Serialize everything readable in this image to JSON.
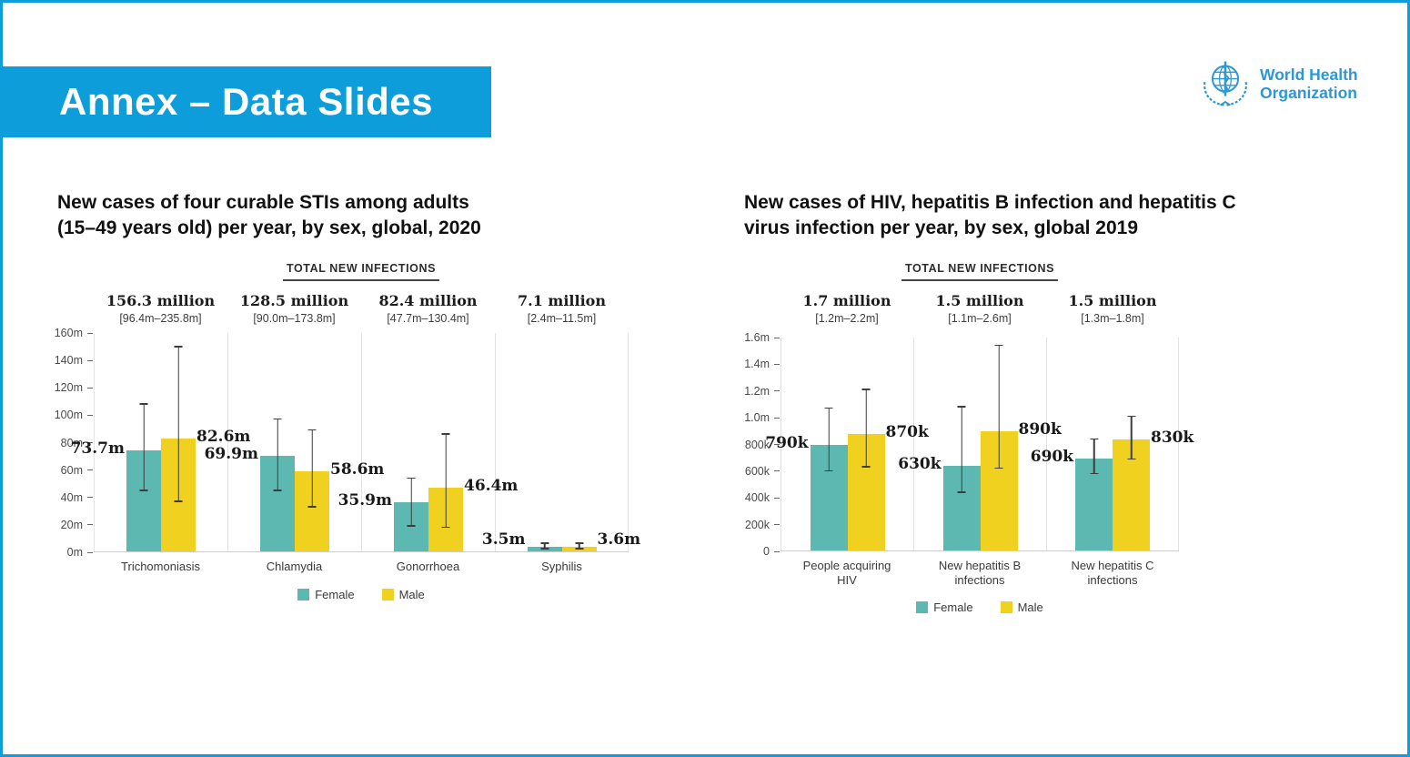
{
  "slide": {
    "banner_title": "Annex – Data Slides"
  },
  "logo": {
    "line1": "World Health",
    "line2": "Organization"
  },
  "colors": {
    "accent_blue": "#0d9dda",
    "logo_blue": "#2e97d3",
    "female_teal": "#5db8b2",
    "male_yellow": "#f0d11f",
    "error_bar": "#3d3d3d"
  },
  "chart_data": [
    {
      "type": "bar",
      "heading_lines": [
        "New cases of four curable STIs among adults",
        "(15–49 years old) per year, by sex, global, 2020"
      ],
      "title": "TOTAL NEW INFECTIONS",
      "unit": "millions",
      "grid": false,
      "legend_position": "bottom",
      "categories": [
        "Trichomoniasis",
        "Chlamydia",
        "Gonorrhoea",
        "Syphilis"
      ],
      "totals": [
        {
          "value": "156.3 million",
          "range": "[96.4m–235.8m]"
        },
        {
          "value": "128.5 million",
          "range": "[90.0m–173.8m]"
        },
        {
          "value": "82.4 million",
          "range": "[47.7m–130.4m]"
        },
        {
          "value": "7.1 million",
          "range": "[2.4m–11.5m]"
        }
      ],
      "ylim": [
        0,
        160
      ],
      "yticks": [
        {
          "label": "160m",
          "value": 160
        },
        {
          "label": "140m",
          "value": 140
        },
        {
          "label": "120m",
          "value": 120
        },
        {
          "label": "100m",
          "value": 100
        },
        {
          "label": "80m",
          "value": 80
        },
        {
          "label": "60m",
          "value": 60
        },
        {
          "label": "40m",
          "value": 40
        },
        {
          "label": "20m",
          "value": 20
        },
        {
          "label": "0m",
          "value": 0
        }
      ],
      "series": [
        {
          "name": "Female",
          "color": "#5db8b2",
          "values": [
            73.7,
            69.9,
            35.9,
            3.5
          ],
          "value_labels": [
            "73.7m",
            "69.9m",
            "35.9m",
            "3.5m"
          ],
          "err_low": [
            44,
            44,
            18,
            1.5
          ],
          "err_high": [
            108,
            97,
            54,
            6.5
          ]
        },
        {
          "name": "Male",
          "color": "#f0d11f",
          "values": [
            82.6,
            58.6,
            46.4,
            3.6
          ],
          "value_labels": [
            "82.6m",
            "58.6m",
            "46.4m",
            "3.6m"
          ],
          "err_low": [
            36,
            32,
            17,
            1.5
          ],
          "err_high": [
            150,
            89,
            86,
            6.5
          ]
        }
      ]
    },
    {
      "type": "bar",
      "heading_lines": [
        "New cases of HIV, hepatitis B infection and hepatitis C",
        "virus infection per year, by sex, global 2019"
      ],
      "title": "TOTAL NEW INFECTIONS",
      "unit": "millions",
      "grid": false,
      "legend_position": "bottom",
      "categories": [
        "People acquiring HIV",
        "New hepatitis B infections",
        "New hepatitis C infections"
      ],
      "totals": [
        {
          "value": "1.7 million",
          "range": "[1.2m–2.2m]"
        },
        {
          "value": "1.5 million",
          "range": "[1.1m–2.6m]"
        },
        {
          "value": "1.5 million",
          "range": "[1.3m–1.8m]"
        }
      ],
      "ylim": [
        0,
        1.6
      ],
      "yticks": [
        {
          "label": "1.6m",
          "value": 1.6
        },
        {
          "label": "1.4m",
          "value": 1.4
        },
        {
          "label": "1.2m",
          "value": 1.2
        },
        {
          "label": "1.0m",
          "value": 1.0
        },
        {
          "label": "800k",
          "value": 0.8
        },
        {
          "label": "600k",
          "value": 0.6
        },
        {
          "label": "400k",
          "value": 0.4
        },
        {
          "label": "200k",
          "value": 0.2
        },
        {
          "label": "0",
          "value": 0
        }
      ],
      "series": [
        {
          "name": "Female",
          "color": "#5db8b2",
          "values": [
            0.79,
            0.63,
            0.69
          ],
          "value_labels": [
            "790k",
            "630k",
            "690k"
          ],
          "err_low": [
            0.59,
            0.43,
            0.57
          ],
          "err_high": [
            1.07,
            1.08,
            0.84
          ]
        },
        {
          "name": "Male",
          "color": "#f0d11f",
          "values": [
            0.87,
            0.89,
            0.83
          ],
          "value_labels": [
            "870k",
            "890k",
            "830k"
          ],
          "err_low": [
            0.62,
            0.61,
            0.68
          ],
          "err_high": [
            1.21,
            1.54,
            1.01
          ]
        }
      ]
    }
  ]
}
